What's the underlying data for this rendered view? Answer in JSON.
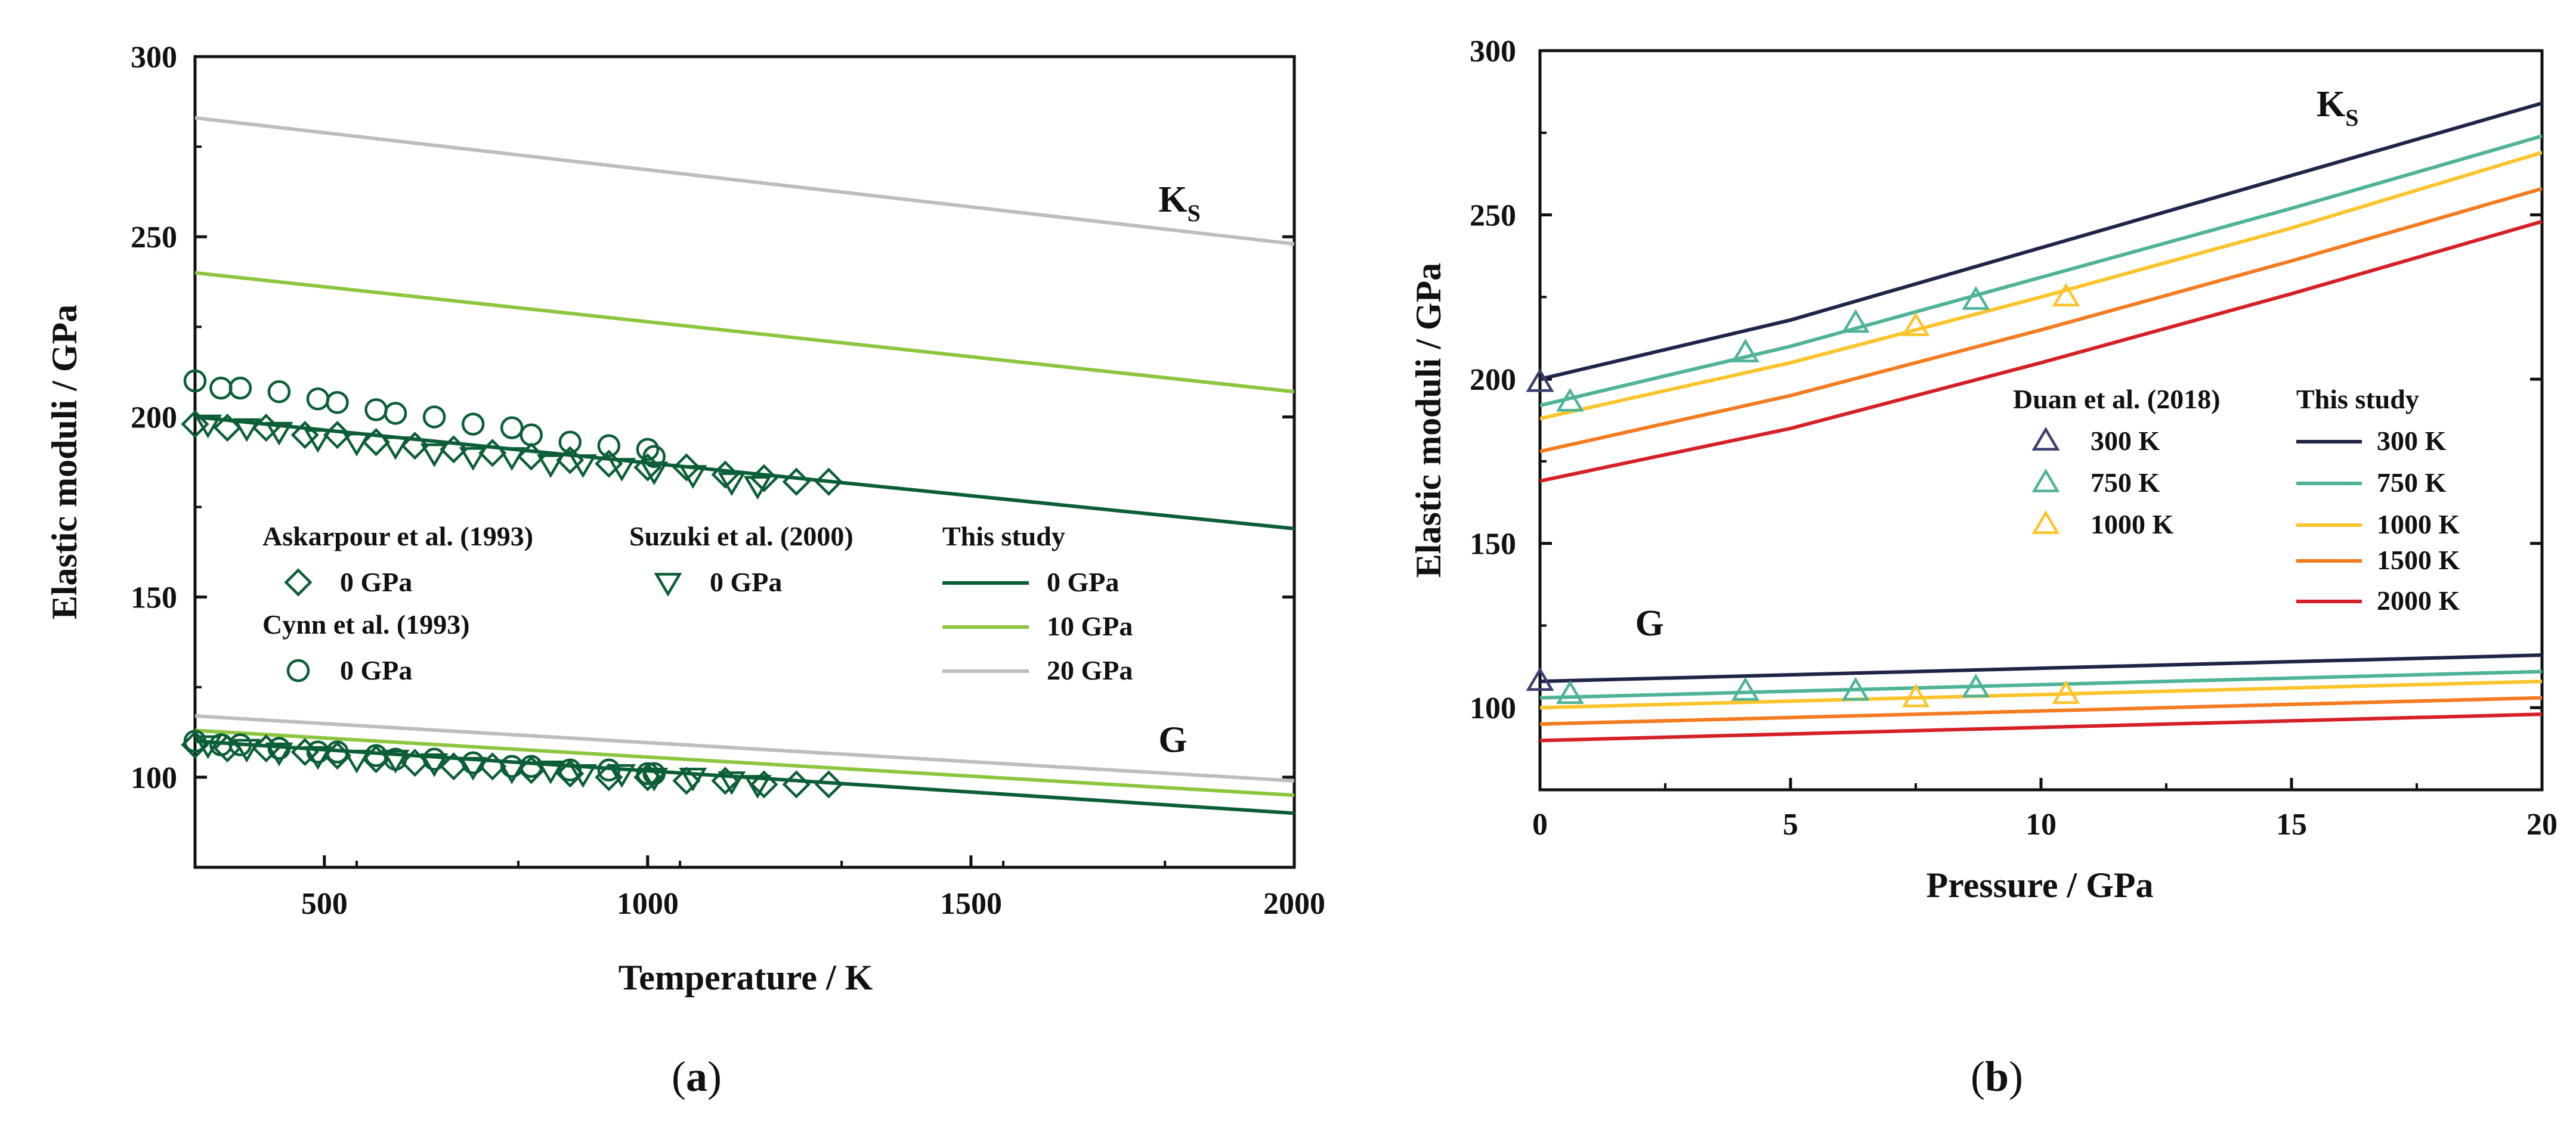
{
  "chart_data": [
    {
      "id": "a",
      "type": "line",
      "caption_letter": "a",
      "xlabel": "Temperature / K",
      "ylabel": "Elastic moduli / GPa",
      "xlim": [
        300,
        2000
      ],
      "ylim": [
        75,
        300
      ],
      "xticks": [
        500,
        1000,
        1500,
        2000
      ],
      "yticks": [
        100,
        150,
        200,
        250,
        300
      ],
      "annotations": [
        {
          "text": "K",
          "sub": "S",
          "x": 1790,
          "y": 257
        },
        {
          "text": "G",
          "sub": "",
          "x": 1790,
          "y": 107
        }
      ],
      "series": [
        {
          "name": "This study 0 GPa K_S",
          "kind": "line",
          "color": "#0b5e36",
          "x": [
            300,
            2000
          ],
          "y": [
            200,
            169
          ]
        },
        {
          "name": "This study 10 GPa K_S",
          "kind": "line",
          "color": "#8cc63f",
          "x": [
            300,
            2000
          ],
          "y": [
            240,
            207
          ]
        },
        {
          "name": "This study 20 GPa K_S",
          "kind": "line",
          "color": "#bdbdbd",
          "x": [
            300,
            2000
          ],
          "y": [
            283,
            248
          ]
        },
        {
          "name": "This study 0 GPa G",
          "kind": "line",
          "color": "#0b5e36",
          "x": [
            300,
            2000
          ],
          "y": [
            110,
            90
          ]
        },
        {
          "name": "This study 10 GPa G",
          "kind": "line",
          "color": "#8cc63f",
          "x": [
            300,
            2000
          ],
          "y": [
            113,
            95
          ]
        },
        {
          "name": "This study 20 GPa G",
          "kind": "line",
          "color": "#bdbdbd",
          "x": [
            300,
            2000
          ],
          "y": [
            117,
            99
          ]
        },
        {
          "name": "Askarpour et al. (1993) 0 GPa K_S",
          "kind": "diamond",
          "color": "#0b5e36",
          "x": [
            300,
            350,
            410,
            470,
            520,
            580,
            640,
            700,
            760,
            820,
            880,
            940,
            1000,
            1060,
            1120,
            1180,
            1230,
            1280
          ],
          "y": [
            198,
            197,
            197,
            195,
            195,
            193,
            192,
            191,
            190,
            189,
            188,
            187,
            186,
            186,
            184,
            183,
            182,
            182
          ]
        },
        {
          "name": "Suzuki et al. (2000) 0 GPa K_S",
          "kind": "triangle",
          "color": "#0b5e36",
          "x": [
            320,
            380,
            430,
            490,
            550,
            610,
            670,
            730,
            790,
            850,
            900,
            960,
            1010,
            1070,
            1130,
            1170
          ],
          "y": [
            198,
            197,
            196,
            194,
            193,
            192,
            190,
            189,
            189,
            187,
            187,
            186,
            185,
            184,
            182,
            181
          ]
        },
        {
          "name": "Cynn et al. (1993) 0 GPa K_S",
          "kind": "circle",
          "color": "#0b5e36",
          "x": [
            300,
            340,
            370,
            430,
            490,
            520,
            580,
            610,
            670,
            730,
            790,
            820,
            880,
            940,
            1000,
            1010
          ],
          "y": [
            210,
            208,
            208,
            207,
            205,
            204,
            202,
            201,
            200,
            198,
            197,
            195,
            193,
            192,
            191,
            189
          ]
        },
        {
          "name": "Askarpour et al. (1993) 0 GPa G",
          "kind": "diamond",
          "color": "#0b5e36",
          "x": [
            300,
            350,
            410,
            470,
            520,
            580,
            640,
            700,
            760,
            820,
            880,
            940,
            1000,
            1060,
            1120,
            1180,
            1230,
            1280
          ],
          "y": [
            109,
            108,
            108,
            107,
            106,
            105,
            104,
            103,
            103,
            102,
            101,
            100,
            100,
            99,
            99,
            98,
            98,
            98
          ]
        },
        {
          "name": "Suzuki et al. (2000) 0 GPa G",
          "kind": "triangle",
          "color": "#0b5e36",
          "x": [
            320,
            380,
            430,
            490,
            550,
            610,
            670,
            730,
            790,
            850,
            900,
            960,
            1010,
            1070,
            1130,
            1170
          ],
          "y": [
            109,
            108,
            107,
            106,
            105,
            105,
            104,
            103,
            102,
            102,
            101,
            101,
            100,
            100,
            99,
            98
          ]
        },
        {
          "name": "Cynn et al. (1993) 0 GPa G",
          "kind": "circle",
          "color": "#0b5e36",
          "x": [
            300,
            340,
            370,
            430,
            490,
            520,
            580,
            610,
            670,
            730,
            790,
            820,
            880,
            940,
            1000,
            1010
          ],
          "y": [
            110,
            109,
            109,
            108,
            107,
            107,
            106,
            105,
            105,
            104,
            103,
            103,
            102,
            102,
            101,
            101
          ]
        }
      ],
      "legend": {
        "placement": "center-left",
        "groups": [
          {
            "title": "Askarpour et al. (1993)",
            "items": [
              {
                "label": "0 GPa",
                "marker": "diamond",
                "color": "#0b5e36"
              }
            ]
          },
          {
            "title": "Cynn et al. (1993)",
            "items": [
              {
                "label": "0 GPa",
                "marker": "circle",
                "color": "#0b5e36"
              }
            ]
          },
          {
            "title": "Suzuki et al. (2000)",
            "items": [
              {
                "label": "0 GPa",
                "marker": "triangle",
                "color": "#0b5e36"
              }
            ]
          },
          {
            "title": "This study",
            "items": [
              {
                "label": "0 GPa",
                "marker": "line",
                "color": "#0b5e36"
              },
              {
                "label": "10 GPa",
                "marker": "line",
                "color": "#8cc63f"
              },
              {
                "label": "20 GPa",
                "marker": "line",
                "color": "#bdbdbd"
              }
            ]
          }
        ]
      }
    },
    {
      "id": "b",
      "type": "line",
      "caption_letter": "b",
      "xlabel": "Pressure / GPa",
      "ylabel": "Elastic moduli / GPa",
      "xlim": [
        0,
        20
      ],
      "ylim": [
        75,
        300
      ],
      "xticks": [
        0,
        5,
        10,
        15,
        20
      ],
      "yticks": [
        100,
        150,
        200,
        250,
        300
      ],
      "annotations": [
        {
          "text": "K",
          "sub": "S",
          "x": 15.5,
          "y": 280
        },
        {
          "text": "G",
          "sub": "",
          "x": 1.9,
          "y": 122
        }
      ],
      "series": [
        {
          "name": "This study 300 K K_S",
          "kind": "line",
          "color": "#1f2548",
          "x": [
            0,
            5,
            10,
            15,
            20
          ],
          "y": [
            200,
            218,
            240,
            262,
            284
          ]
        },
        {
          "name": "This study 750 K K_S",
          "kind": "line",
          "color": "#4fb39a",
          "x": [
            0,
            5,
            10,
            15,
            20
          ],
          "y": [
            192,
            210,
            231,
            252,
            274
          ]
        },
        {
          "name": "This study 1000 K K_S",
          "kind": "line",
          "color": "#fcc42a",
          "x": [
            0,
            5,
            10,
            15,
            20
          ],
          "y": [
            188,
            205,
            225,
            246,
            269
          ]
        },
        {
          "name": "This study 1500 K K_S",
          "kind": "line",
          "color": "#f47b20",
          "x": [
            0,
            5,
            10,
            15,
            20
          ],
          "y": [
            178,
            195,
            215,
            236,
            258
          ]
        },
        {
          "name": "This study 2000 K K_S",
          "kind": "line",
          "color": "#d62027",
          "x": [
            0,
            5,
            10,
            15,
            20
          ],
          "y": [
            169,
            185,
            205,
            226,
            248
          ]
        },
        {
          "name": "This study 300 K G",
          "kind": "line",
          "color": "#1f2548",
          "x": [
            0,
            20
          ],
          "y": [
            108,
            116
          ]
        },
        {
          "name": "This study 750 K G",
          "kind": "line",
          "color": "#4fb39a",
          "x": [
            0,
            20
          ],
          "y": [
            103,
            111
          ]
        },
        {
          "name": "This study 1000 K G",
          "kind": "line",
          "color": "#fcc42a",
          "x": [
            0,
            20
          ],
          "y": [
            100,
            108
          ]
        },
        {
          "name": "This study 1500 K G",
          "kind": "line",
          "color": "#f47b20",
          "x": [
            0,
            20
          ],
          "y": [
            95,
            103
          ]
        },
        {
          "name": "This study 2000 K G",
          "kind": "line",
          "color": "#d62027",
          "x": [
            0,
            20
          ],
          "y": [
            90,
            98
          ]
        },
        {
          "name": "Duan et al. (2018) 300 K",
          "kind": "triangle",
          "color": "#3a3f6e",
          "x": [
            0,
            0
          ],
          "y": [
            199,
            108
          ]
        },
        {
          "name": "Duan et al. (2018) 750 K",
          "kind": "triangle",
          "color": "#4fb39a",
          "x": [
            0.6,
            4.1,
            6.3,
            8.7,
            0.6,
            4.1,
            6.3,
            8.7
          ],
          "y": [
            193,
            208,
            217,
            224,
            104,
            105,
            105,
            106
          ]
        },
        {
          "name": "Duan et al. (2018) 1000 K",
          "kind": "triangle",
          "color": "#fcc42a",
          "x": [
            7.5,
            10.5,
            7.5,
            10.5
          ],
          "y": [
            216,
            225,
            103,
            104
          ]
        }
      ],
      "legend": {
        "placement": "center-right",
        "groups": [
          {
            "title": "Duan et al. (2018)",
            "items": [
              {
                "label": "300 K",
                "marker": "triangle",
                "color": "#3a3f6e"
              },
              {
                "label": "750 K",
                "marker": "triangle",
                "color": "#4fb39a"
              },
              {
                "label": "1000 K",
                "marker": "triangle",
                "color": "#fcc42a"
              }
            ]
          },
          {
            "title": "This study",
            "items": [
              {
                "label": "300 K",
                "marker": "line",
                "color": "#1f2548"
              },
              {
                "label": "750 K",
                "marker": "line",
                "color": "#4fb39a"
              },
              {
                "label": "1000 K",
                "marker": "line",
                "color": "#fcc42a"
              },
              {
                "label": "1500 K",
                "marker": "line",
                "color": "#f47b20"
              },
              {
                "label": "2000 K",
                "marker": "line",
                "color": "#d62027"
              }
            ]
          }
        ]
      }
    }
  ]
}
